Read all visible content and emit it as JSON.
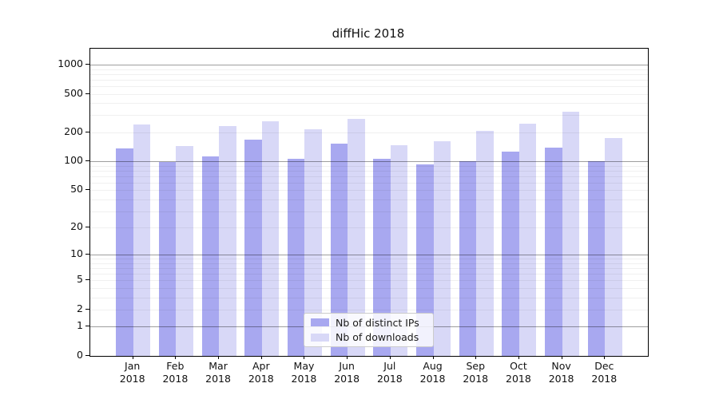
{
  "title": "diffHic 2018",
  "chart_data": {
    "type": "bar",
    "scale": "log10(1+y)",
    "title": "diffHic 2018",
    "xlabel": "",
    "ylabel": "",
    "year": "2018",
    "categories": [
      "Jan",
      "Feb",
      "Mar",
      "Apr",
      "May",
      "Jun",
      "Jul",
      "Aug",
      "Sep",
      "Oct",
      "Nov",
      "Dec"
    ],
    "series": [
      {
        "name": "Nb of distinct IPs",
        "color": "#a8a8f0",
        "values": [
          135,
          99,
          113,
          168,
          107,
          154,
          107,
          93,
          100,
          126,
          140,
          100
        ]
      },
      {
        "name": "Nb of downloads",
        "color": "#d8d8f7",
        "values": [
          243,
          143,
          233,
          261,
          216,
          273,
          148,
          162,
          206,
          245,
          326,
          173
        ]
      }
    ],
    "yticks": [
      1000,
      500,
      200,
      100,
      50,
      20,
      10,
      5,
      2,
      1,
      0
    ],
    "ylim": [
      0,
      1460
    ],
    "grid": true,
    "grid_major_levels": [
      1,
      10,
      100,
      1000
    ],
    "legend_position": "lower center"
  },
  "colors": {
    "bar_distinct_ips": "#a8a8f0",
    "bar_downloads": "#d8d8f7",
    "grid_major": "rgba(0,0,0,0.38)",
    "grid_minor": "rgba(0,0,0,0.06)",
    "spine": "#000000",
    "legend_border": "#cccccc"
  }
}
